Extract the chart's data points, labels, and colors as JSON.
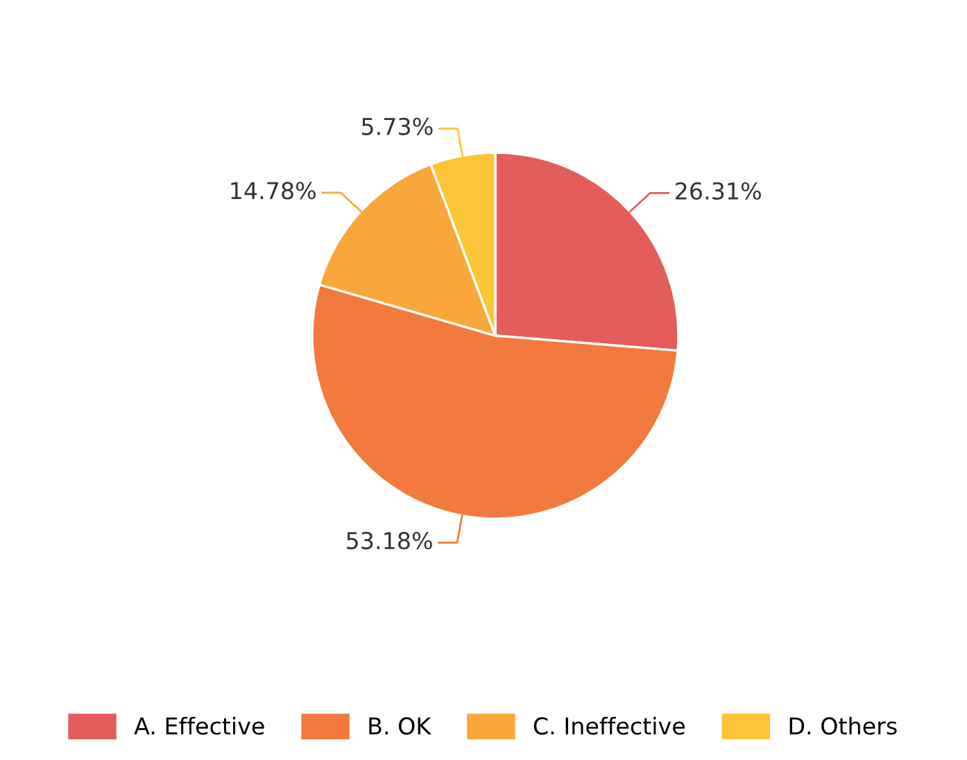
{
  "chart_data": {
    "type": "pie",
    "categories": [
      "A. Effective",
      "B. OK",
      "C. Ineffective",
      "D. Others"
    ],
    "values": [
      26.31,
      53.18,
      14.78,
      5.73
    ],
    "value_labels": [
      "26.31%",
      "53.18%",
      "14.78%",
      "5.73%"
    ],
    "colors": [
      "#e35d5d",
      "#f27a3e",
      "#f9a73c",
      "#fcc537"
    ],
    "legend": "bottom"
  }
}
